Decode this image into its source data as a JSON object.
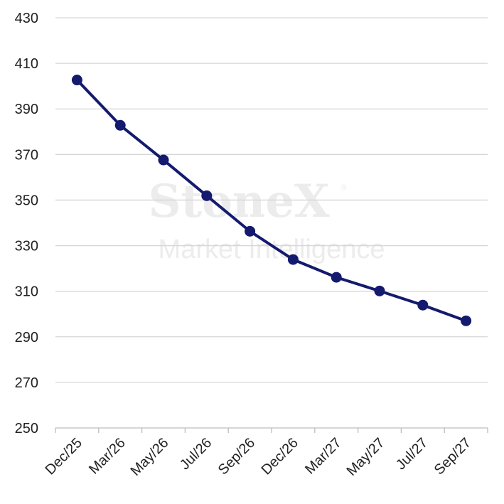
{
  "watermark": {
    "brand": "StoneX",
    "registered": "®",
    "subtitle": "Market Intelligence"
  },
  "chart_data": {
    "type": "line",
    "title": "",
    "xlabel": "",
    "ylabel": "",
    "ylim": [
      250,
      430
    ],
    "yticks": [
      "250",
      "270",
      "290",
      "310",
      "330",
      "350",
      "370",
      "390",
      "410",
      "430"
    ],
    "categories": [
      "Dec/25",
      "Mar/26",
      "May/26",
      "Jul/26",
      "Sep/26",
      "Dec/26",
      "Mar/27",
      "May/27",
      "Jul/27",
      "Sep/27"
    ],
    "values": [
      402.7,
      382.8,
      367.6,
      351.9,
      336.3,
      323.9,
      316.1,
      310.1,
      303.9,
      297.0
    ],
    "grid": true,
    "legend": "none",
    "color": "#141a6e"
  }
}
